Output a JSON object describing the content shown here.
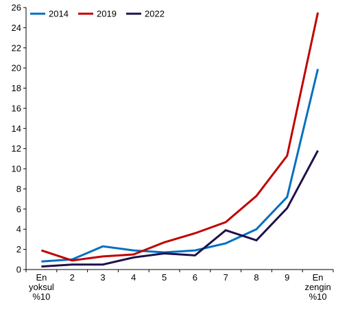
{
  "chart_data": {
    "type": "line",
    "categories": [
      [
        "En",
        "yoksul",
        "%10"
      ],
      [
        "2"
      ],
      [
        "3"
      ],
      [
        "4"
      ],
      [
        "5"
      ],
      [
        "6"
      ],
      [
        "7"
      ],
      [
        "8"
      ],
      [
        "9"
      ],
      [
        "En",
        "zengin",
        "%10"
      ]
    ],
    "series": [
      {
        "name": "2014",
        "color": "#0070C0",
        "values": [
          0.8,
          1.0,
          2.3,
          1.9,
          1.7,
          1.9,
          2.6,
          4.0,
          7.2,
          19.9
        ]
      },
      {
        "name": "2019",
        "color": "#C00000",
        "values": [
          1.9,
          0.9,
          1.3,
          1.5,
          2.7,
          3.6,
          4.7,
          7.3,
          11.3,
          25.5
        ]
      },
      {
        "name": "2022",
        "color": "#1F0F4A",
        "values": [
          0.3,
          0.5,
          0.5,
          1.2,
          1.6,
          1.4,
          3.9,
          2.9,
          6.1,
          11.8
        ]
      }
    ],
    "ylim": [
      0,
      26
    ],
    "yticks": [
      "0",
      "2",
      "4",
      "6",
      "8",
      "10",
      "12",
      "14",
      "16",
      "18",
      "20",
      "22",
      "24",
      "26"
    ],
    "legend_position": "top-left",
    "grid": false
  }
}
